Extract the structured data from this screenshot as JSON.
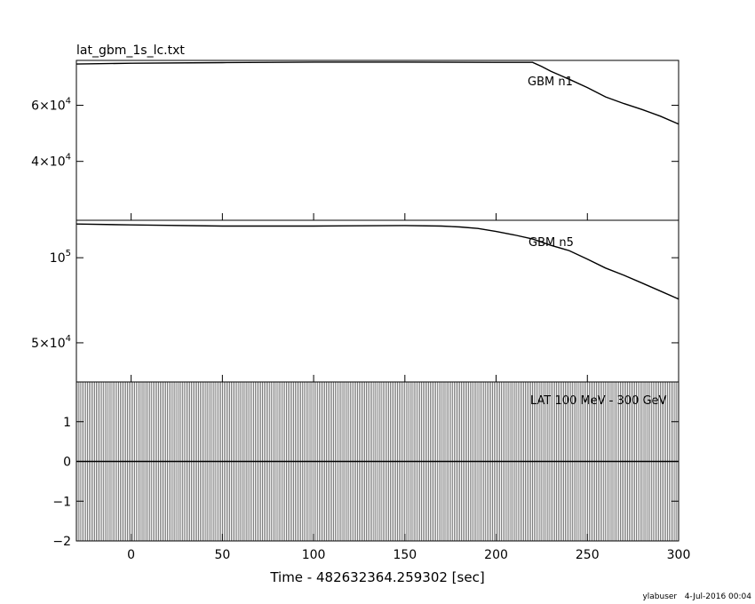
{
  "file_title": "lat_gbm_1s_lc.txt",
  "footer": "ylabuser   4-Jul-2016 00:04",
  "chart_data": [
    {
      "type": "line",
      "name": "GBM n1",
      "xlim": [
        -30,
        300
      ],
      "ylim": [
        19000,
        76000
      ],
      "y_ticks": [
        {
          "v": 40000,
          "m": "4",
          "e": "4"
        },
        {
          "v": 60000,
          "m": "6",
          "e": "4"
        }
      ],
      "x": [
        -30,
        0,
        50,
        100,
        150,
        200,
        220,
        225,
        230,
        240,
        250,
        260,
        270,
        280,
        290,
        300
      ],
      "y": [
        74700,
        75000,
        75200,
        75400,
        75400,
        75300,
        75300,
        73800,
        72100,
        69300,
        66300,
        63000,
        60600,
        58500,
        56100,
        53300
      ]
    },
    {
      "type": "line",
      "name": "GBM n5",
      "xlim": [
        -30,
        300
      ],
      "ylim": [
        27000,
        122000
      ],
      "y_ticks": [
        {
          "v": 50000,
          "m": "5",
          "e": "4"
        },
        {
          "v": 100000,
          "m": "",
          "e": "5"
        }
      ],
      "x": [
        -30,
        0,
        50,
        100,
        150,
        170,
        180,
        190,
        200,
        210,
        220,
        230,
        240,
        250,
        260,
        270,
        280,
        290,
        300
      ],
      "y": [
        119800,
        119300,
        118600,
        118600,
        118900,
        118600,
        118100,
        117200,
        115400,
        113400,
        111000,
        107300,
        104200,
        99200,
        93900,
        89700,
        85100,
        80400,
        75700
      ]
    },
    {
      "type": "line",
      "name": "LAT 100 MeV - 300 GeV",
      "xlim": [
        -30,
        300
      ],
      "ylim": [
        -2,
        2
      ],
      "y_ticks": [
        -2,
        -1,
        0,
        1
      ],
      "x": [
        -30,
        300
      ],
      "y": [
        0,
        0
      ],
      "xlabel": "Time - 482632364.259302 [sec]",
      "x_ticks": [
        0,
        50,
        100,
        150,
        200,
        250,
        300
      ]
    }
  ]
}
